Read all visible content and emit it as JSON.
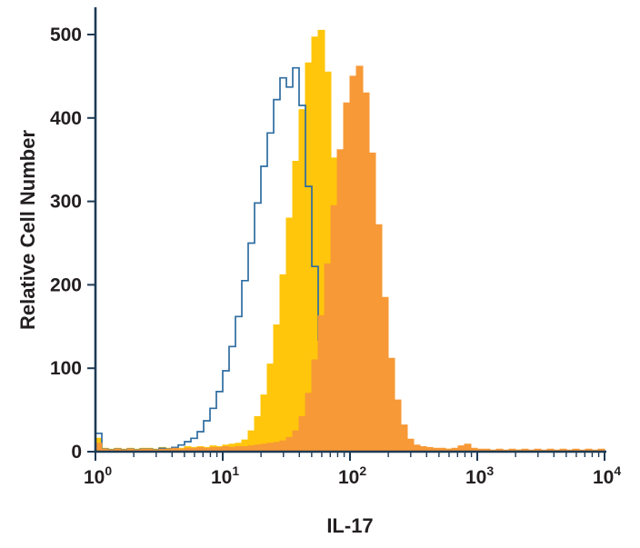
{
  "chart_data": {
    "type": "histogram-overlay",
    "title": "",
    "x_axis": {
      "label": "IL-17",
      "scale": "log10",
      "min_exp": 0,
      "max_exp": 4,
      "ticks": [
        {
          "log": 0,
          "base": "10",
          "exp": "0"
        },
        {
          "log": 1,
          "base": "10",
          "exp": "1"
        },
        {
          "log": 2,
          "base": "10",
          "exp": "2"
        },
        {
          "log": 3,
          "base": "10",
          "exp": "3"
        },
        {
          "log": 4,
          "base": "10",
          "exp": "4"
        }
      ]
    },
    "y_axis": {
      "label": "Relative Cell Number",
      "min": 0,
      "max": 500,
      "ticks": [
        0,
        100,
        200,
        300,
        400,
        500
      ]
    },
    "style": {
      "axis_color": "#1e3a54",
      "text_color": "#231f20",
      "grid": false,
      "legend": "none"
    },
    "bin_log_start": 0,
    "bin_log_step": 0.05,
    "series": [
      {
        "name": "yellow-filled-histogram",
        "style": "filled",
        "color": "#ffc60b",
        "peak": {
          "x": 56,
          "y": 505
        },
        "values": [
          16,
          4,
          3,
          4,
          3,
          4,
          3,
          4,
          4,
          3,
          5,
          4,
          5,
          4,
          6,
          5,
          6,
          5,
          7,
          6,
          8,
          9,
          10,
          14,
          25,
          42,
          68,
          105,
          152,
          212,
          280,
          348,
          410,
          466,
          497,
          505,
          455,
          352,
          238,
          138,
          68,
          30,
          12,
          6,
          4,
          3,
          3,
          2,
          3,
          2,
          2,
          3,
          2,
          2,
          2,
          3,
          2,
          6,
          8,
          3,
          2,
          2,
          1,
          2,
          1,
          1,
          2,
          1,
          1,
          2,
          1,
          1,
          1,
          2,
          1,
          1,
          1,
          1,
          1,
          1,
          1
        ]
      },
      {
        "name": "blue-open-histogram",
        "style": "open",
        "color": "#2e6da0",
        "peak": {
          "x": 35,
          "y": 460
        },
        "values": [
          22,
          3,
          2,
          3,
          2,
          3,
          2,
          3,
          3,
          2,
          4,
          3,
          5,
          8,
          12,
          16,
          24,
          37,
          52,
          72,
          97,
          126,
          162,
          205,
          250,
          298,
          342,
          382,
          422,
          448,
          437,
          460,
          415,
          318,
          222,
          134,
          70,
          34,
          15,
          6,
          3,
          2,
          2,
          1,
          2,
          1,
          1,
          2,
          1,
          1,
          1,
          1,
          2,
          1,
          1,
          1,
          1,
          1,
          1,
          1,
          1,
          1,
          1,
          1,
          1,
          1,
          1,
          1,
          1,
          1,
          1,
          1,
          1,
          1,
          1,
          1,
          1,
          1,
          1,
          1,
          1
        ]
      },
      {
        "name": "orange-filled-histogram",
        "style": "filled",
        "color": "#f79936",
        "peak": {
          "x": 112,
          "y": 462
        },
        "values": [
          10,
          3,
          2,
          3,
          2,
          3,
          2,
          3,
          3,
          2,
          3,
          3,
          4,
          3,
          4,
          4,
          5,
          4,
          5,
          5,
          6,
          5,
          6,
          6,
          7,
          8,
          9,
          10,
          11,
          13,
          17,
          25,
          42,
          70,
          110,
          163,
          225,
          295,
          362,
          418,
          450,
          462,
          430,
          358,
          272,
          185,
          112,
          62,
          32,
          15,
          8,
          6,
          5,
          4,
          4,
          3,
          4,
          7,
          9,
          4,
          3,
          3,
          2,
          3,
          2,
          3,
          2,
          3,
          2,
          3,
          2,
          3,
          2,
          3,
          2,
          3,
          2,
          3,
          2,
          3,
          2
        ]
      }
    ]
  }
}
